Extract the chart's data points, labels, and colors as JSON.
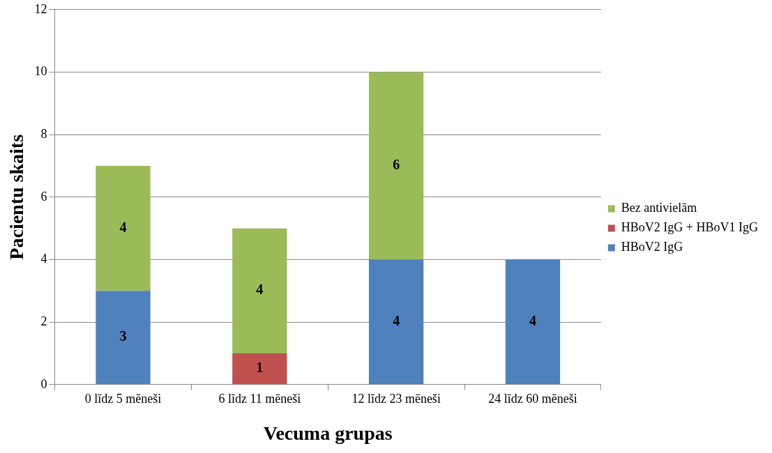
{
  "chart_data": {
    "type": "bar",
    "stacked": true,
    "xlabel": "Vecuma grupas",
    "ylabel": "Pacientu skaits",
    "categories": [
      "0 līdz 5 mēneši",
      "6 līdz 11 mēneši",
      "12 līdz 23 mēneši",
      "24 līdz 60 mēneši"
    ],
    "series": [
      {
        "name": "HBoV2 IgG",
        "color": "#4f81bd",
        "values": [
          3,
          null,
          4,
          4
        ]
      },
      {
        "name": "HBoV2 IgG + HBoV1 IgG",
        "color": "#c0504d",
        "values": [
          null,
          1,
          null,
          null
        ]
      },
      {
        "name": "Bez antivielām",
        "color": "#9bbb59",
        "values": [
          4,
          4,
          6,
          null
        ]
      }
    ],
    "ylim": [
      0,
      12
    ],
    "yticks": [
      0,
      2,
      4,
      6,
      8,
      10,
      12
    ],
    "grid": "y",
    "legend": "right",
    "data_labels": true
  }
}
